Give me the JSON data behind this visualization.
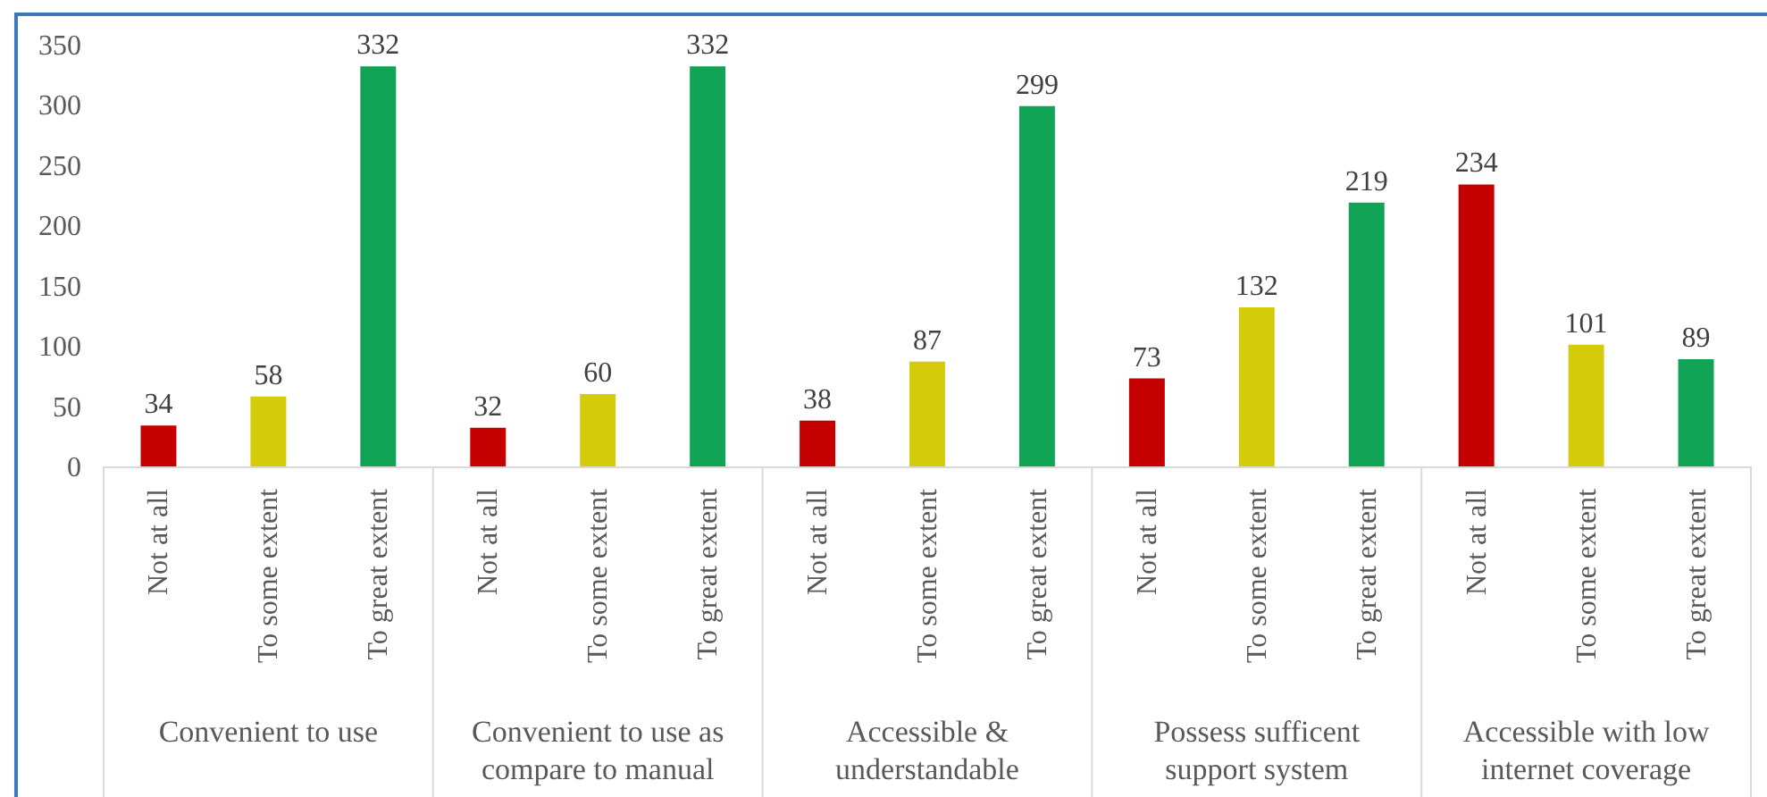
{
  "chart_data": {
    "type": "bar",
    "categories": [
      "Not at all",
      "To some extent",
      "To great extent",
      "Not at all",
      "To some extent",
      "To great extent",
      "Not at all",
      "To some extent",
      "To great extent",
      "Not at all",
      "To some extent",
      "To great extent",
      "Not at all",
      "To some extent",
      "To great extent"
    ],
    "values": [
      34,
      58,
      332,
      32,
      60,
      332,
      38,
      87,
      299,
      73,
      132,
      219,
      234,
      101,
      89
    ],
    "colors": [
      "#c40000",
      "#d4cc0a",
      "#12a456",
      "#c40000",
      "#d4cc0a",
      "#12a456",
      "#c40000",
      "#d4cc0a",
      "#12a456",
      "#c40000",
      "#d4cc0a",
      "#12a456",
      "#c40000",
      "#d4cc0a",
      "#12a456"
    ],
    "annotations": [
      "Convenient to use",
      "Convenient to use as compare to manual",
      "Accessible & understandable",
      "Possess sufficent support system",
      "Accessible with low internet coverage"
    ],
    "ylim": [
      0,
      350
    ],
    "yticks": [
      0,
      50,
      100,
      150,
      200,
      250,
      300,
      350
    ],
    "data_labels": true
  }
}
